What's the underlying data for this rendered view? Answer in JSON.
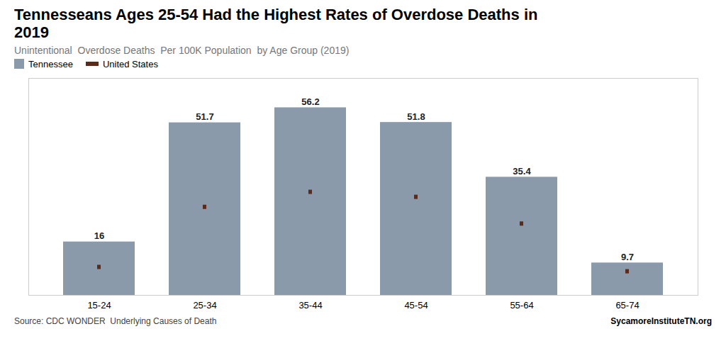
{
  "chart_data": {
    "type": "bar",
    "title": "Tennesseans Ages 25-54 Had the Highest Rates of Overdose Deaths in\n2019",
    "subtitle": "Unintentional  Overdose Deaths  Per 100K Population  by Age Group (2019)",
    "categories": [
      "15-24",
      "25-34",
      "35-44",
      "45-54",
      "55-64",
      "65-74"
    ],
    "series": [
      {
        "name": "Tennessee",
        "type": "bar",
        "color": "#8a9aab",
        "values": [
          16.0,
          51.7,
          56.2,
          51.8,
          35.4,
          9.7
        ]
      },
      {
        "name": "United States",
        "type": "tick",
        "color": "#5a2a1a",
        "values": [
          8.5,
          26.5,
          31.0,
          29.5,
          21.5,
          7.2
        ]
      }
    ],
    "ylim": [
      0,
      65
    ],
    "tick_labels": "x",
    "data_labels": true,
    "legend": "top",
    "annotations": [
      "Source: CDC WONDER  Underlying Causes of Death",
      "SycamoreInstituteTN.org"
    ]
  }
}
